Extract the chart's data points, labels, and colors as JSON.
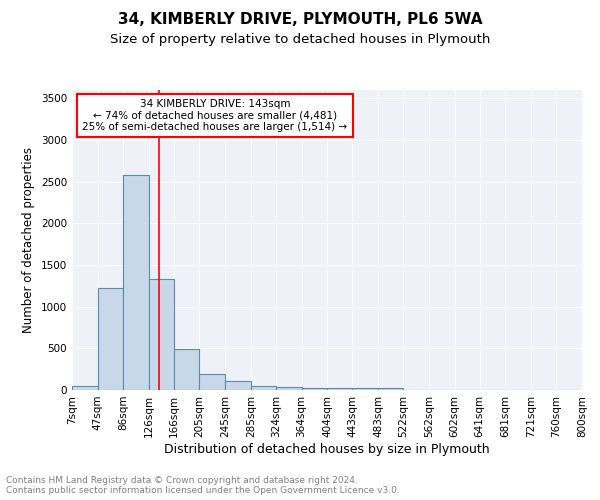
{
  "title1": "34, KIMBERLY DRIVE, PLYMOUTH, PL6 5WA",
  "title2": "Size of property relative to detached houses in Plymouth",
  "xlabel": "Distribution of detached houses by size in Plymouth",
  "ylabel": "Number of detached properties",
  "bins": [
    "7sqm",
    "47sqm",
    "86sqm",
    "126sqm",
    "166sqm",
    "205sqm",
    "245sqm",
    "285sqm",
    "324sqm",
    "364sqm",
    "404sqm",
    "443sqm",
    "483sqm",
    "522sqm",
    "562sqm",
    "602sqm",
    "641sqm",
    "681sqm",
    "721sqm",
    "760sqm",
    "800sqm"
  ],
  "bin_edges": [
    7,
    47,
    86,
    126,
    166,
    205,
    245,
    285,
    324,
    364,
    404,
    443,
    483,
    522,
    562,
    602,
    641,
    681,
    721,
    760,
    800
  ],
  "values": [
    50,
    1230,
    2580,
    1330,
    490,
    190,
    110,
    50,
    40,
    30,
    30,
    30,
    30,
    0,
    0,
    0,
    0,
    0,
    0,
    0
  ],
  "bar_color": "#c8d8e8",
  "bar_edgecolor": "#5a8ab0",
  "bar_linewidth": 0.8,
  "redline_x": 143,
  "annotation_title": "34 KIMBERLY DRIVE: 143sqm",
  "annotation_line1": "← 74% of detached houses are smaller (4,481)",
  "annotation_line2": "25% of semi-detached houses are larger (1,514) →",
  "annotation_box_color": "white",
  "annotation_box_edgecolor": "red",
  "redline_color": "red",
  "background_color": "#eef2f8",
  "ylim": [
    0,
    3600
  ],
  "yticks": [
    0,
    500,
    1000,
    1500,
    2000,
    2500,
    3000,
    3500
  ],
  "footer": "Contains HM Land Registry data © Crown copyright and database right 2024.\nContains public sector information licensed under the Open Government Licence v3.0.",
  "title1_fontsize": 11,
  "title2_fontsize": 9.5,
  "xlabel_fontsize": 9,
  "ylabel_fontsize": 8.5,
  "tick_fontsize": 7.5,
  "annotation_fontsize": 7.5,
  "footer_fontsize": 6.5
}
